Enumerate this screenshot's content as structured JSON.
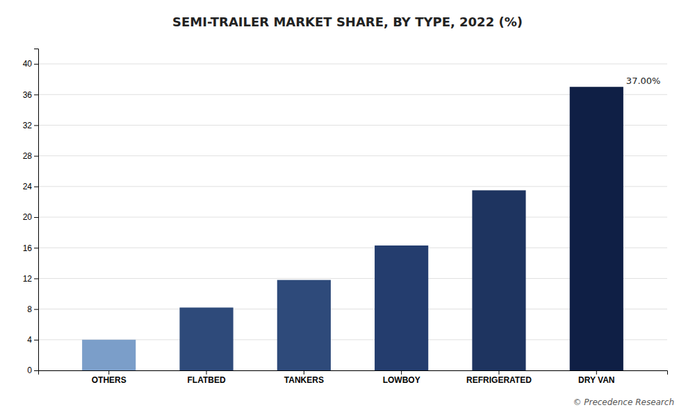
{
  "chart_data": {
    "type": "bar",
    "title": "SEMI-TRAILER MARKET SHARE, BY TYPE, 2022 (%)",
    "categories": [
      "OTHERS",
      "FLATBED",
      "TANKERS",
      "LOWBOY",
      "REFRIGERATED",
      "DRY VAN"
    ],
    "values": [
      4.0,
      8.2,
      11.8,
      16.3,
      23.5,
      37.0
    ],
    "colors": [
      "#7b9ec9",
      "#2e4a7a",
      "#2e4a7a",
      "#243d6e",
      "#1e3460",
      "#0f1f45"
    ],
    "ylim": [
      0,
      42
    ],
    "yticks": [
      0,
      4,
      8,
      12,
      16,
      20,
      24,
      28,
      32,
      36,
      40
    ],
    "grid": true,
    "annotations": [
      {
        "text": "37.00%",
        "x": "DRY VAN",
        "y": 37.0
      }
    ],
    "caption": "© Precedence Research"
  }
}
